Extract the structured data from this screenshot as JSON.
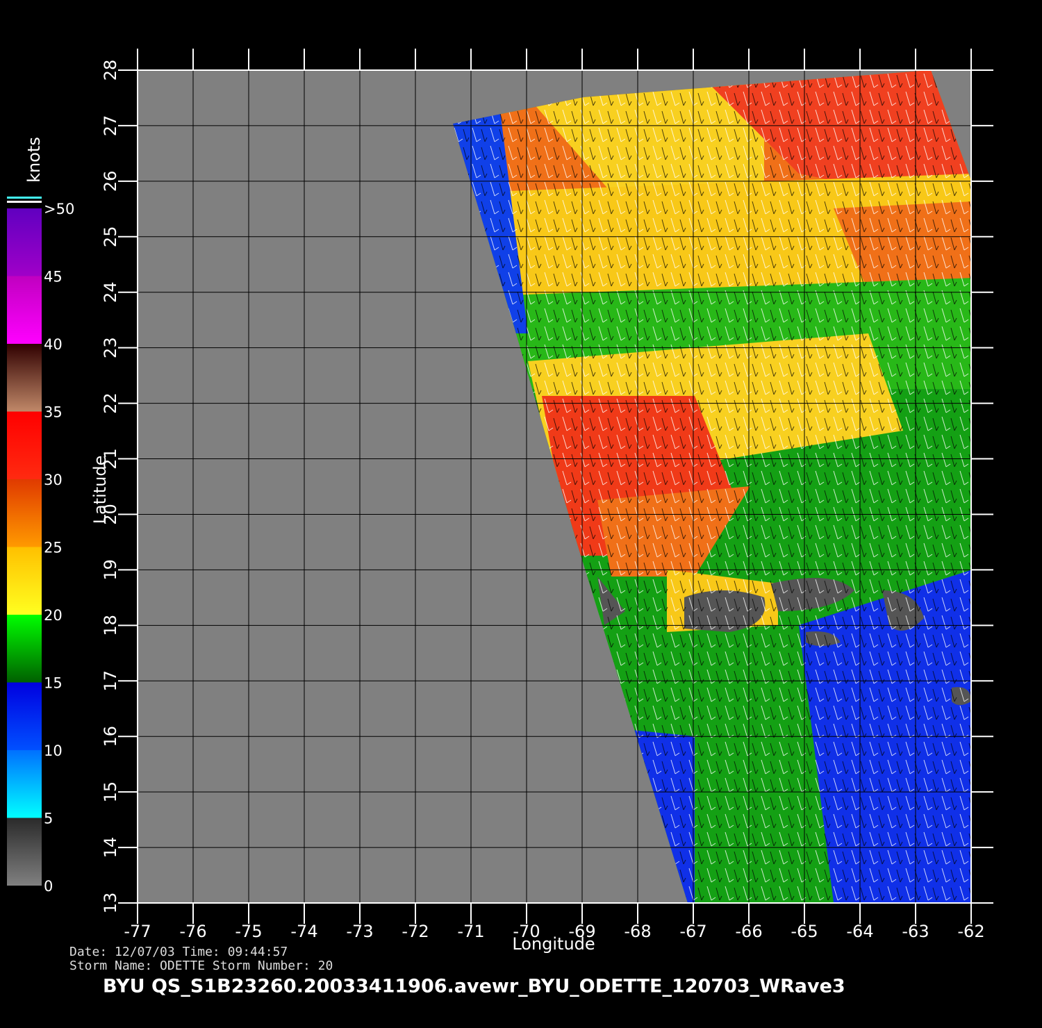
{
  "chart_data": {
    "type": "map",
    "title": "BYU  QS_S1B23260.20033411906.avewr_BYU_ODETTE_120703_WRave3",
    "date_line": "Date: 12/07/03   Time: 09:44:57",
    "storm_line": "Storm  Name: ODETTE   Storm  Number: 20",
    "xlabel": "Longitude",
    "ylabel": "Latitude",
    "xlim": [
      -77,
      -62
    ],
    "ylim": [
      13,
      28
    ],
    "xticks": [
      -77,
      -76,
      -75,
      -74,
      -73,
      -72,
      -71,
      -70,
      -69,
      -68,
      -67,
      -66,
      -65,
      -64,
      -63,
      -62
    ],
    "yticks": [
      13,
      14,
      15,
      16,
      17,
      18,
      19,
      20,
      21,
      22,
      23,
      24,
      25,
      26,
      27,
      28
    ],
    "grid": true,
    "colorbar": {
      "label": "knots",
      "ticks": [
        0,
        5,
        10,
        15,
        20,
        25,
        30,
        35,
        40,
        45,
        {
          "value": 50,
          "label": ">50"
        }
      ],
      "bands": [
        [
          "#808080",
          "#2a2a2a"
        ],
        [
          "#00ffff",
          "#0070ff"
        ],
        [
          "#0050ff",
          "#0000e0"
        ],
        [
          "#006000",
          "#00ff00"
        ],
        [
          "#ffff20",
          "#ffc000"
        ],
        [
          "#ff9a00",
          "#e03a00"
        ],
        [
          "#ff2a10",
          "#ff0000"
        ],
        [
          "#c08868",
          "#300000"
        ],
        [
          "#ff00ff",
          "#c000c0"
        ],
        [
          "#a000c8",
          "#6000c0"
        ]
      ]
    }
  }
}
